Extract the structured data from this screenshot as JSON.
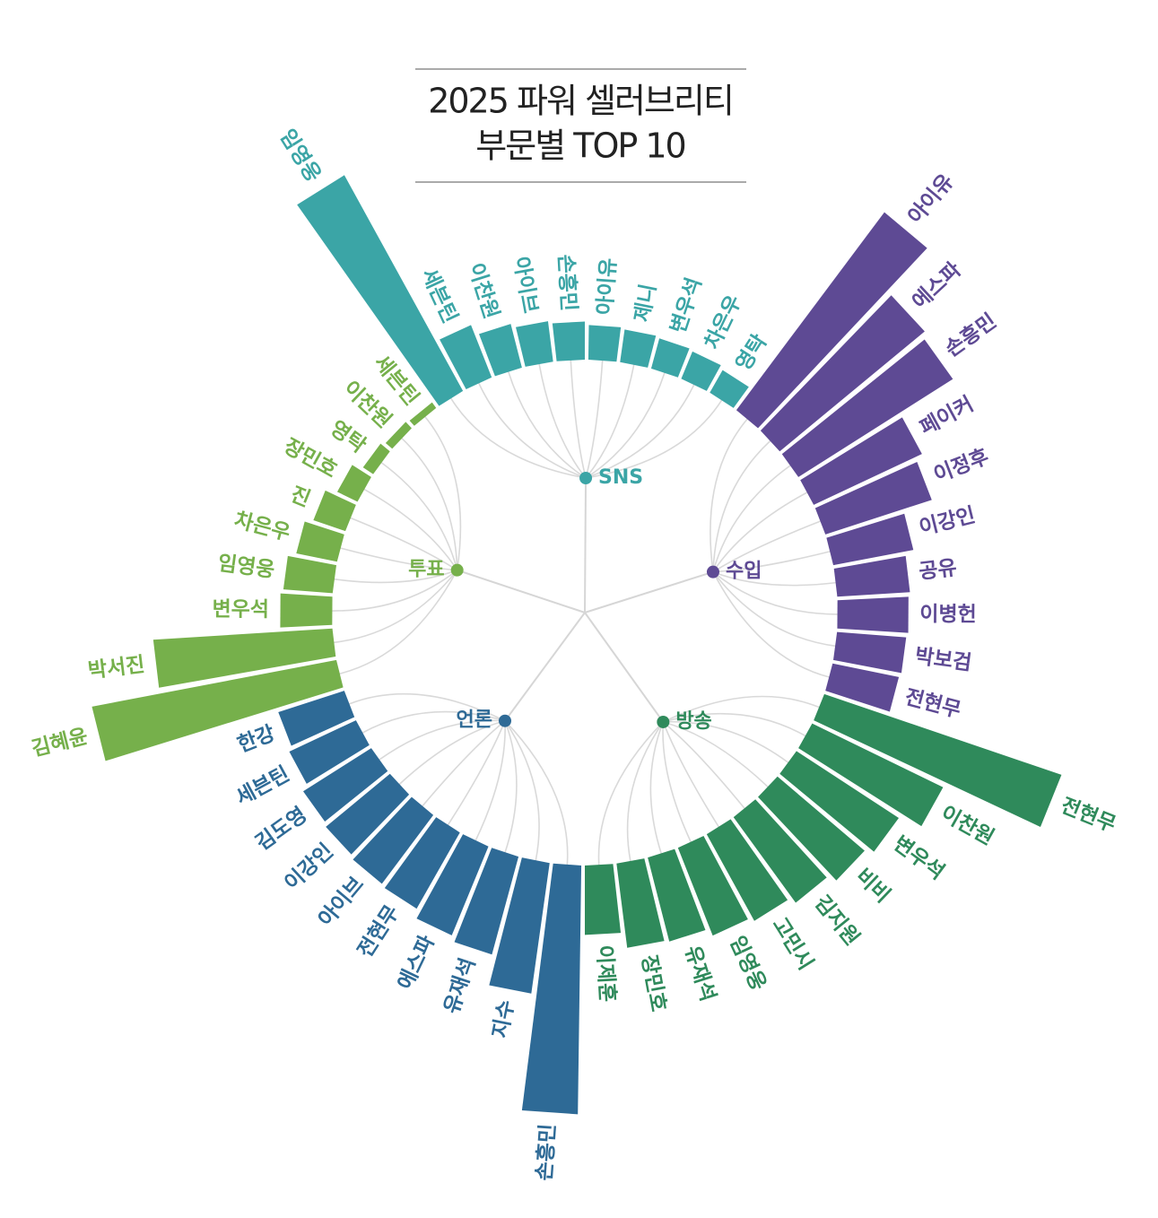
{
  "chart_data": {
    "type": "radial_bar",
    "title": [
      "2025 파워 셀러브리티",
      "부문별 TOP 10"
    ],
    "rlim": [
      0,
      300
    ],
    "groups": [
      {
        "name": "SNS",
        "color": "#3ba5a6",
        "categories": [
          "임영웅",
          "세븐틴",
          "이찬원",
          "아이브",
          "손흥민",
          "아이유",
          "제니",
          "변우석",
          "차은우",
          "영탁"
        ],
        "values": [
          284,
          65,
          52,
          47,
          44,
          40,
          38,
          36,
          34,
          30
        ]
      },
      {
        "name": "수입",
        "color": "#5e4a94",
        "categories": [
          "아이유",
          "에스파",
          "손흥민",
          "페이커",
          "이정후",
          "이강인",
          "공유",
          "이병헌",
          "박보검",
          "전현무"
        ],
        "values": [
          285,
          217,
          211,
          138,
          129,
          94,
          84,
          82,
          80,
          78
        ]
      },
      {
        "name": "방송",
        "color": "#2f8a5b",
        "categories": [
          "전현무",
          "이찬원",
          "변우석",
          "비비",
          "김지원",
          "고민시",
          "임영웅",
          "유재석",
          "장민호",
          "이제훈"
        ],
        "values": [
          289,
          168,
          141,
          132,
          122,
          114,
          109,
          100,
          98,
          80
        ]
      },
      {
        "name": "언론",
        "color": "#2e6a96",
        "categories": [
          "손흥민",
          "지수",
          "유재석",
          "에스파",
          "전현무",
          "아이브",
          "이강인",
          "김도영",
          "세븐틴",
          "한강"
        ],
        "values": [
          287,
          152,
          117,
          111,
          101,
          99,
          96,
          93,
          85,
          80
        ]
      },
      {
        "name": "투표",
        "color": "#76b04b",
        "categories": [
          "김혜윤",
          "박서진",
          "변우석",
          "임영웅",
          "차은우",
          "진",
          "장민호",
          "영탁",
          "이찬원",
          "세븐틴"
        ],
        "values": [
          287,
          207,
          60,
          57,
          48,
          39,
          26,
          14,
          10,
          8
        ]
      }
    ]
  }
}
